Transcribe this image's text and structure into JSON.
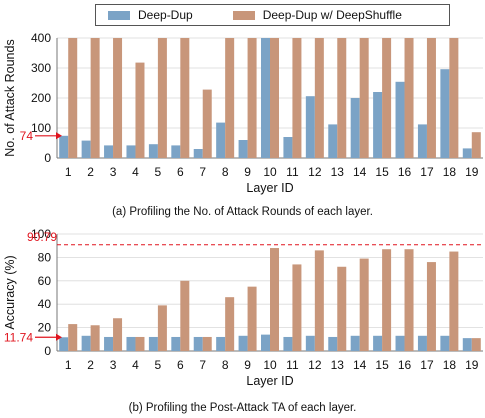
{
  "legend": {
    "series_a": "Deep-Dup",
    "series_b": "Deep-Dup w/ DeepShuffle"
  },
  "colors": {
    "series_a": "#7ba3c6",
    "series_b": "#c8967a",
    "annotation": "#e0141e"
  },
  "chart_data": [
    {
      "type": "bar",
      "caption": "(a) Profiling the No. of Attack Rounds of each layer.",
      "xlabel": "Layer ID",
      "ylabel": "No. of Attack Rounds",
      "categories": [
        "1",
        "2",
        "3",
        "4",
        "5",
        "6",
        "7",
        "8",
        "9",
        "10",
        "11",
        "12",
        "13",
        "14",
        "15",
        "16",
        "17",
        "18",
        "19"
      ],
      "ylim": [
        0,
        400
      ],
      "yticks": [
        0,
        100,
        200,
        300,
        400
      ],
      "grid": true,
      "annotation": {
        "label": "74",
        "value": 74,
        "style": "arrow"
      },
      "series": [
        {
          "name": "Deep-Dup",
          "values": [
            74,
            58,
            42,
            42,
            46,
            42,
            30,
            118,
            60,
            400,
            70,
            206,
            112,
            200,
            220,
            254,
            112,
            296,
            32
          ]
        },
        {
          "name": "Deep-Dup w/ DeepShuffle",
          "values": [
            400,
            400,
            400,
            318,
            400,
            400,
            228,
            400,
            400,
            400,
            400,
            400,
            400,
            400,
            400,
            400,
            400,
            400,
            86
          ]
        }
      ]
    },
    {
      "type": "bar",
      "caption": "(b) Profiling the Post-Attack TA of each layer.",
      "xlabel": "Layer ID",
      "ylabel": "Accuracy (%)",
      "categories": [
        "1",
        "2",
        "3",
        "4",
        "5",
        "6",
        "7",
        "8",
        "9",
        "10",
        "11",
        "12",
        "13",
        "14",
        "15",
        "16",
        "17",
        "18",
        "19"
      ],
      "ylim": [
        0,
        100
      ],
      "yticks": [
        0,
        20,
        40,
        60,
        80,
        100
      ],
      "grid": true,
      "reference_line": {
        "label": "90.79",
        "value": 90.79,
        "style": "dashed"
      },
      "annotation": {
        "label": "11.74",
        "value": 11.74,
        "style": "arrow"
      },
      "series": [
        {
          "name": "Deep-Dup",
          "values": [
            11.74,
            13,
            12,
            12,
            12,
            12,
            12,
            12,
            13,
            14,
            12,
            13,
            12,
            13,
            13,
            13,
            13,
            13,
            11
          ]
        },
        {
          "name": "Deep-Dup w/ DeepShuffle",
          "values": [
            23,
            22,
            28,
            12,
            39,
            60,
            12,
            46,
            55,
            88,
            74,
            86,
            72,
            79,
            87,
            87,
            76,
            85,
            11
          ]
        }
      ]
    }
  ]
}
